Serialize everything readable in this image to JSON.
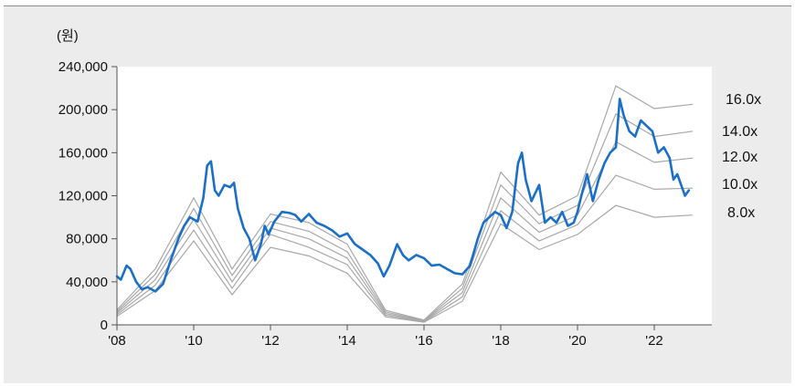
{
  "chart_data": {
    "type": "line",
    "unit_label": "(원)",
    "xlabel": "",
    "ylabel": "",
    "ylim": [
      0,
      240000
    ],
    "xlim": [
      2008,
      2023.5
    ],
    "y_ticks": [
      0,
      40000,
      80000,
      120000,
      160000,
      200000,
      240000
    ],
    "y_tick_labels": [
      "0",
      "40,000",
      "80,000",
      "120,000",
      "160,000",
      "200,000",
      "240,000"
    ],
    "x_ticks": [
      2008,
      2010,
      2012,
      2014,
      2016,
      2018,
      2020,
      2022
    ],
    "x_tick_labels": [
      "'08",
      "'10",
      "'12",
      "'14",
      "'16",
      "'18",
      "'20",
      "'22"
    ],
    "grid": false,
    "colors": {
      "price": "#1a6fc8",
      "bands": "#a8a8a8"
    },
    "band_x": [
      2008,
      2009,
      2010,
      2011,
      2012,
      2013,
      2014,
      2015,
      2016,
      2017,
      2018,
      2019,
      2020,
      2021,
      2022,
      2023
    ],
    "bands": [
      {
        "name": "16.0x",
        "values": [
          14000,
          52000,
          118000,
          52000,
          103000,
          95000,
          75000,
          13500,
          4500,
          38000,
          142000,
          102000,
          120000,
          222000,
          201000,
          205000
        ]
      },
      {
        "name": "14.0x",
        "values": [
          12500,
          47000,
          108000,
          46000,
          96000,
          87000,
          68000,
          12000,
          4000,
          34000,
          130000,
          94000,
          111000,
          196000,
          175000,
          180000
        ]
      },
      {
        "name": "12.0x",
        "values": [
          11000,
          42000,
          98000,
          40000,
          90000,
          80000,
          62000,
          10500,
          3500,
          30000,
          118000,
          86000,
          102000,
          170000,
          151000,
          155000
        ]
      },
      {
        "name": "10.0x",
        "values": [
          9500,
          37000,
          88000,
          34000,
          84000,
          72000,
          56000,
          9000,
          3000,
          26000,
          106000,
          78000,
          93000,
          139000,
          126000,
          127000
        ]
      },
      {
        "name": "8.0x",
        "values": [
          8000,
          32000,
          78000,
          28000,
          72000,
          64000,
          48000,
          7500,
          2500,
          22000,
          94000,
          70000,
          84000,
          111000,
          100000,
          102000
        ]
      }
    ],
    "series": [
      {
        "x": [
          2008.0,
          2008.1,
          2008.25,
          2008.35,
          2008.5,
          2008.65,
          2008.8,
          2009.0,
          2009.2,
          2009.4,
          2009.6,
          2009.75,
          2009.9,
          2010.1,
          2010.25,
          2010.35,
          2010.45,
          2010.55,
          2010.65,
          2010.8,
          2010.95,
          2011.05,
          2011.15,
          2011.3,
          2011.45,
          2011.6,
          2011.75,
          2011.85,
          2011.95,
          2012.1,
          2012.3,
          2012.5,
          2012.65,
          2012.8,
          2013.0,
          2013.2,
          2013.4,
          2013.6,
          2013.8,
          2014.0,
          2014.2,
          2014.4,
          2014.6,
          2014.8,
          2014.95,
          2015.1,
          2015.3,
          2015.45,
          2015.6,
          2015.8,
          2016.0,
          2016.2,
          2016.4,
          2016.6,
          2016.8,
          2017.0,
          2017.2,
          2017.4,
          2017.55,
          2017.7,
          2017.85,
          2018.0,
          2018.15,
          2018.3,
          2018.45,
          2018.55,
          2018.65,
          2018.8,
          2019.0,
          2019.15,
          2019.3,
          2019.45,
          2019.6,
          2019.75,
          2019.9,
          2020.0,
          2020.1,
          2020.25,
          2020.4,
          2020.55,
          2020.7,
          2020.85,
          2021.0,
          2021.1,
          2021.2,
          2021.35,
          2021.5,
          2021.65,
          2021.8,
          2021.95,
          2022.1,
          2022.25,
          2022.4,
          2022.5,
          2022.6,
          2022.7,
          2022.8,
          2022.9
        ],
        "values": [
          45000,
          42000,
          55000,
          52000,
          40000,
          33000,
          35000,
          31000,
          38000,
          60000,
          80000,
          92000,
          100000,
          96000,
          118000,
          148000,
          152000,
          125000,
          120000,
          130000,
          128000,
          132000,
          108000,
          90000,
          80000,
          60000,
          75000,
          92000,
          84000,
          96000,
          105000,
          104000,
          102000,
          96000,
          103000,
          95000,
          92000,
          88000,
          82000,
          85000,
          75000,
          70000,
          65000,
          57000,
          45000,
          55000,
          75000,
          65000,
          60000,
          65000,
          62000,
          55000,
          56000,
          52000,
          48000,
          47000,
          55000,
          80000,
          95000,
          100000,
          105000,
          102000,
          90000,
          105000,
          150000,
          160000,
          135000,
          115000,
          130000,
          95000,
          100000,
          95000,
          105000,
          92000,
          95000,
          105000,
          120000,
          140000,
          115000,
          135000,
          150000,
          160000,
          165000,
          210000,
          195000,
          180000,
          175000,
          190000,
          185000,
          180000,
          160000,
          165000,
          155000,
          135000,
          140000,
          130000,
          120000,
          125000
        ]
      }
    ]
  }
}
